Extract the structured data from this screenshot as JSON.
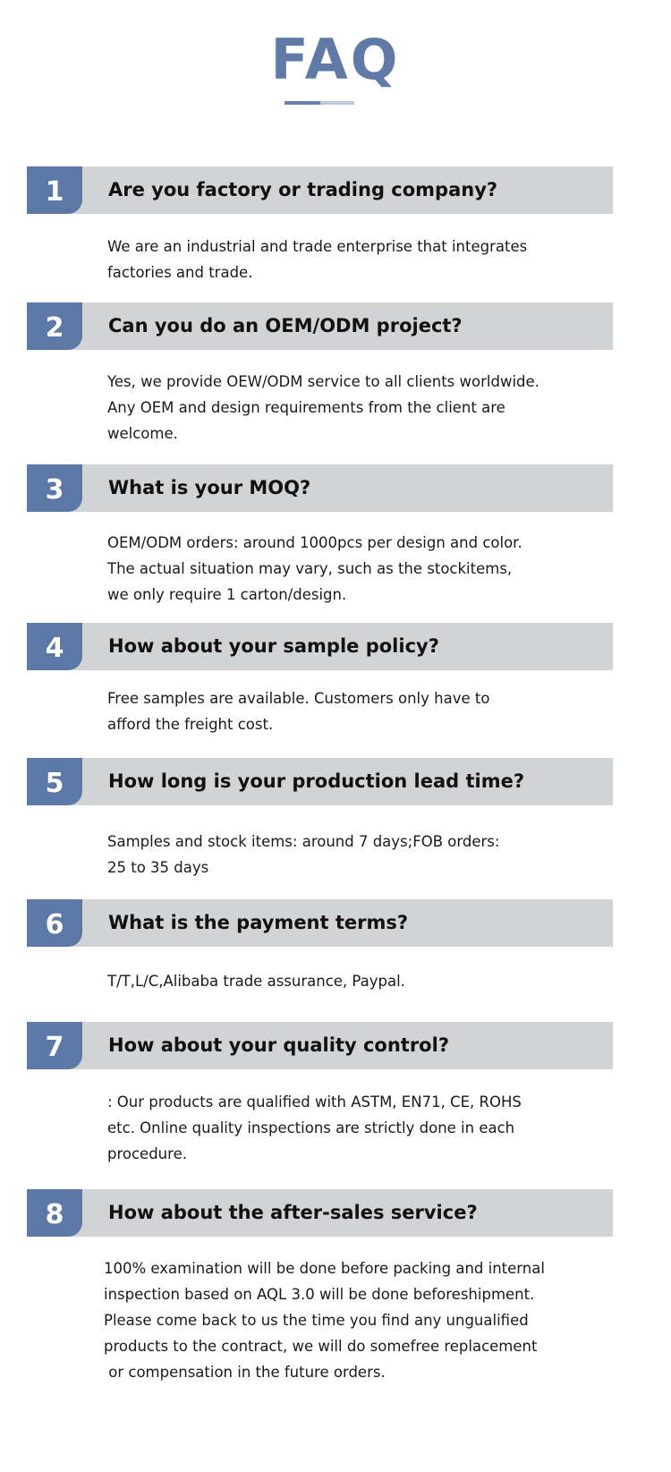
{
  "title": "FAQ",
  "colors": {
    "accent": "#5b78a7",
    "bar": "#d2d3d5"
  },
  "faqs": [
    {
      "num": "1",
      "question": "Are you factory or trading company?",
      "answer": [
        "We are an industrial and trade enterprise that integrates",
        "factories and trade."
      ]
    },
    {
      "num": "2",
      "question": "Can you do an OEM/ODM project?",
      "answer": [
        "Yes, we provide OEW/ODM service to all clients worldwide.",
        "Any OEM and design requirements from the client are",
        "welcome."
      ]
    },
    {
      "num": "3",
      "question": "What is your MOQ?",
      "answer": [
        "OEM/ODM orders: around 1000pcs per design and color.",
        "The actual situation may vary, such as the stockitems,",
        "we only require 1 carton/design."
      ]
    },
    {
      "num": "4",
      "question": "How about your sample policy?",
      "answer": [
        "Free samples are available. Customers only have to",
        "afford the freight cost."
      ]
    },
    {
      "num": "5",
      "question": "How long is your production lead time?",
      "answer": [
        "Samples and stock items: around 7 days;FOB orders:",
        "25 to 35 days"
      ]
    },
    {
      "num": "6",
      "question": "What is the payment terms?",
      "answer": [
        "T/T,L/C,Alibaba trade assurance, Paypal."
      ]
    },
    {
      "num": "7",
      "question": "How about your quality control?",
      "answer": [
        ": Our products are qualified with ASTM, EN71, CE, ROHS",
        "etc. Online quality inspections are strictly done in each",
        "procedure."
      ]
    },
    {
      "num": "8",
      "question": "How about the after-sales service?",
      "answer": [
        "100% examination will be done before packing and internal",
        "inspection based on AQL 3.0 will be done beforeshipment.",
        "Please come back to us the time you find any ungualified",
        "products to the contract, we will do somefree replacement",
        " or compensation in the future orders."
      ]
    }
  ]
}
